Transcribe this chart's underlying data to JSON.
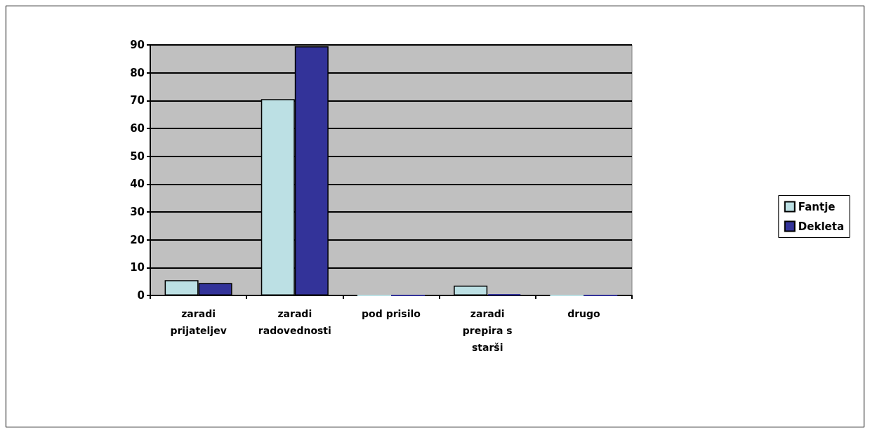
{
  "chart_data": {
    "type": "bar",
    "categories": [
      "zaradi\nprijateljev",
      "zaradi\nradovednosti",
      "pod prisilo",
      "zaradi\nprepira s\nstarši",
      "drugo"
    ],
    "series": [
      {
        "name": "Fantje",
        "color": "#bce0e4",
        "values": [
          5.5,
          70.5,
          0,
          3.5,
          0
        ]
      },
      {
        "name": "Dekleta",
        "color": "#333399",
        "values": [
          4.5,
          89.5,
          0,
          0.5,
          0
        ]
      }
    ],
    "ylim": [
      0,
      90
    ],
    "yticks": [
      0,
      10,
      20,
      30,
      40,
      50,
      60,
      70,
      80,
      90
    ],
    "grid": "y",
    "legend": "right"
  }
}
